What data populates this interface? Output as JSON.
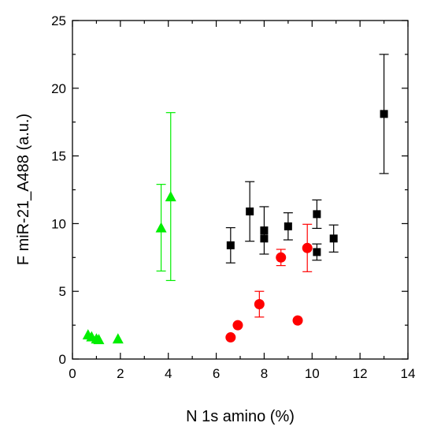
{
  "chart_data": {
    "type": "scatter",
    "title": "",
    "xlabel": "N 1s amino (%)",
    "ylabel": "F miR-21_A488 (a.u.)",
    "xlim": [
      0,
      14
    ],
    "ylim": [
      0,
      25
    ],
    "x_ticks": [
      0,
      2,
      4,
      6,
      8,
      10,
      12,
      14
    ],
    "y_ticks": [
      0,
      5,
      10,
      15,
      20,
      25
    ],
    "grid": false,
    "legend": "none",
    "series": [
      {
        "marker": "square",
        "color": "#000000",
        "points": [
          {
            "x": 6.6,
            "y": 8.4,
            "err_low": 1.3,
            "err_high": 1.3
          },
          {
            "x": 7.4,
            "y": 10.9,
            "err_low": 2.2,
            "err_high": 2.2
          },
          {
            "x": 8.0,
            "y": 9.5,
            "err_low": 1.75,
            "err_high": 1.75
          },
          {
            "x": 8.0,
            "y": 8.9
          },
          {
            "x": 9.0,
            "y": 9.8,
            "err_low": 1.0,
            "err_high": 1.0
          },
          {
            "x": 10.2,
            "y": 10.7,
            "err_low": 1.05,
            "err_high": 1.05
          },
          {
            "x": 10.2,
            "y": 7.9,
            "err_low": 0.6,
            "err_high": 0.6
          },
          {
            "x": 10.9,
            "y": 8.9,
            "err_low": 1.0,
            "err_high": 1.0
          },
          {
            "x": 13.0,
            "y": 18.1,
            "err_low": 4.4,
            "err_high": 4.4
          }
        ]
      },
      {
        "marker": "circle",
        "color": "#ff0000",
        "points": [
          {
            "x": 6.6,
            "y": 1.6
          },
          {
            "x": 6.9,
            "y": 2.5
          },
          {
            "x": 7.8,
            "y": 4.05,
            "err_low": 0.95,
            "err_high": 0.95
          },
          {
            "x": 8.7,
            "y": 7.5,
            "err_low": 0.6,
            "err_high": 0.6
          },
          {
            "x": 9.4,
            "y": 2.85
          },
          {
            "x": 9.8,
            "y": 8.2,
            "err_low": 1.75,
            "err_high": 1.75
          }
        ]
      },
      {
        "marker": "triangle",
        "color": "#00ee00",
        "points": [
          {
            "x": 0.65,
            "y": 1.8
          },
          {
            "x": 0.8,
            "y": 1.65
          },
          {
            "x": 1.0,
            "y": 1.5
          },
          {
            "x": 1.1,
            "y": 1.45
          },
          {
            "x": 1.9,
            "y": 1.5
          },
          {
            "x": 3.7,
            "y": 9.7,
            "err_low": 3.2,
            "err_high": 3.2
          },
          {
            "x": 4.1,
            "y": 12.0,
            "err_low": 6.2,
            "err_high": 6.2
          }
        ]
      }
    ]
  }
}
